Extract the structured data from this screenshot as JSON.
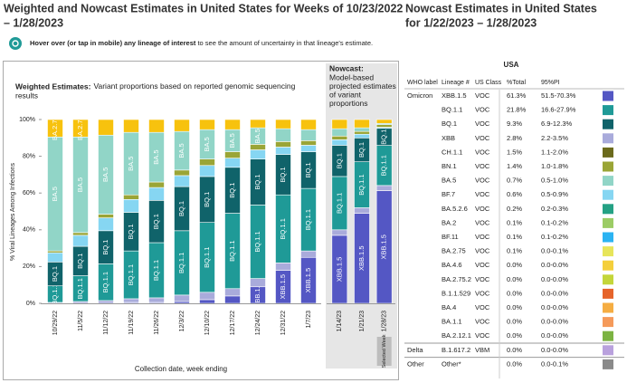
{
  "header": {
    "left_title": [
      "Weighted and Nowcast Estimates in United States for Weeks of 10/23/2022",
      "– 1/28/2023"
    ],
    "right_title": [
      "Nowcast Estimates in United States",
      "for 1/22/2023 – 1/28/2023"
    ],
    "note_bold": "Hover over (or tap in mobile) any lineage of interest",
    "note": " to see the amount of uncertainty in that lineage's estimate."
  },
  "chart_data": [
    {
      "type": "stacked-bar",
      "title": "Weighted Estimates:",
      "subtitle": [
        "Variant proportions based on reported genomic sequencing",
        "results"
      ],
      "y_label": "% Viral Lineages Among Infections",
      "x_label": "Collection date, week ending",
      "categories": [
        "10/29/22",
        "11/5/22",
        "11/12/22",
        "11/19/22",
        "11/26/22",
        "12/3/22",
        "12/10/22",
        "12/17/22",
        "12/24/22",
        "12/31/22",
        "1/7/23"
      ],
      "ylim": [
        0,
        100
      ],
      "yticks": [
        {
          "value": 0,
          "label": "0%"
        },
        {
          "value": 20,
          "label": "20%"
        },
        {
          "value": 40,
          "label": "40%"
        },
        {
          "value": 60,
          "label": "60%"
        },
        {
          "value": 80,
          "label": "80%"
        },
        {
          "value": 100,
          "label": "100%"
        }
      ],
      "series": [
        {
          "name": "XBB.1.5",
          "color": "#5457c4",
          "values": [
            0,
            0,
            0,
            0.5,
            0.5,
            1,
            2,
            4,
            9,
            18,
            25
          ]
        },
        {
          "name": "XBB",
          "color": "#a9abdb",
          "values": [
            0.5,
            1,
            1.5,
            2,
            2.5,
            3.5,
            4,
            4,
            4.5,
            4,
            3.5
          ]
        },
        {
          "name": "BQ.1.1",
          "color": "#1f9a97",
          "values": [
            9,
            14,
            20,
            26,
            30,
            35,
            38,
            41,
            40,
            37,
            34
          ]
        },
        {
          "name": "BQ.1",
          "color": "#10636a",
          "values": [
            13,
            16,
            18,
            21,
            23,
            24,
            25,
            25,
            25,
            22,
            20
          ]
        },
        {
          "name": "BF.7",
          "color": "#86d6f2",
          "values": [
            5,
            6,
            7,
            7,
            7,
            6,
            6,
            5,
            5,
            4,
            3.5
          ]
        },
        {
          "name": "BN.1",
          "color": "#9aa536",
          "values": [
            1,
            1.5,
            2,
            2.5,
            3,
            3,
            3.5,
            3.5,
            3,
            3,
            2.5
          ]
        },
        {
          "name": "BA.5",
          "color": "#91d5c7",
          "values": [
            62,
            52,
            43,
            34,
            27,
            21,
            16,
            12,
            9,
            7,
            6
          ]
        },
        {
          "name": "BA.2.75",
          "color": "#f7c20e",
          "values": [
            9.5,
            9.5,
            8.5,
            7,
            7,
            6.5,
            5.5,
            5.5,
            4.5,
            5,
            5.5
          ]
        }
      ]
    },
    {
      "type": "stacked-bar",
      "title": "Nowcast:",
      "subtitle": [
        "Model-based",
        "projected estimates",
        "of variant",
        "proportions"
      ],
      "annotation": "Selected Week",
      "categories": [
        "1/14/23",
        "1/21/23",
        "1/28/23"
      ],
      "ylim": [
        0,
        100
      ],
      "series": [
        {
          "name": "XBB.1.5",
          "color": "#5457c4",
          "values": [
            37,
            49,
            61.3
          ]
        },
        {
          "name": "XBB",
          "color": "#a9abdb",
          "values": [
            3,
            3,
            2.8
          ]
        },
        {
          "name": "BQ.1.1",
          "color": "#1f9a97",
          "values": [
            29,
            25,
            21.8
          ]
        },
        {
          "name": "BQ.1",
          "color": "#10636a",
          "values": [
            17,
            13,
            9.3
          ]
        },
        {
          "name": "BF.7",
          "color": "#86d6f2",
          "values": [
            3,
            2,
            0.6
          ]
        },
        {
          "name": "BN.1",
          "color": "#9aa536",
          "values": [
            2,
            1.5,
            1.4
          ]
        },
        {
          "name": "BA.5",
          "color": "#91d5c7",
          "values": [
            4,
            2,
            0.7
          ]
        },
        {
          "name": "BA.2.75",
          "color": "#f7c20e",
          "values": [
            5,
            4.5,
            2.1
          ]
        }
      ]
    }
  ],
  "table": {
    "region": "USA",
    "columns": [
      "WHO label",
      "Lineage #",
      "US Class",
      "%Total",
      "95%PI"
    ],
    "rows": [
      {
        "who": "Omicron",
        "lineage": "XBB.1.5",
        "class": "VOC",
        "total": "61.3%",
        "pi": "51.5-70.3%",
        "color": "#5457c4"
      },
      {
        "lineage": "BQ.1.1",
        "class": "VOC",
        "total": "21.8%",
        "pi": "16.6-27.9%",
        "color": "#1f9a97"
      },
      {
        "lineage": "BQ.1",
        "class": "VOC",
        "total": "9.3%",
        "pi": "6.9-12.3%",
        "color": "#10636a"
      },
      {
        "lineage": "XBB",
        "class": "VOC",
        "total": "2.8%",
        "pi": "2.2-3.5%",
        "color": "#a9abdb"
      },
      {
        "lineage": "CH.1.1",
        "class": "VOC",
        "total": "1.5%",
        "pi": "1.1-2.0%",
        "color": "#6b6a1c"
      },
      {
        "lineage": "BN.1",
        "class": "VOC",
        "total": "1.4%",
        "pi": "1.0-1.8%",
        "color": "#9aa536"
      },
      {
        "lineage": "BA.5",
        "class": "VOC",
        "total": "0.7%",
        "pi": "0.5-1.0%",
        "color": "#91d5c7"
      },
      {
        "lineage": "BF.7",
        "class": "VOC",
        "total": "0.6%",
        "pi": "0.5-0.9%",
        "color": "#86d6f2"
      },
      {
        "lineage": "BA.5.2.6",
        "class": "VOC",
        "total": "0.2%",
        "pi": "0.2-0.3%",
        "color": "#24a184"
      },
      {
        "lineage": "BA.2",
        "class": "VOC",
        "total": "0.1%",
        "pi": "0.1-0.2%",
        "color": "#9ccc65"
      },
      {
        "lineage": "BF.11",
        "class": "VOC",
        "total": "0.1%",
        "pi": "0.1-0.2%",
        "color": "#2bb3f2"
      },
      {
        "lineage": "BA.2.75",
        "class": "VOC",
        "total": "0.1%",
        "pi": "0.0-0.1%",
        "color": "#e7e55a"
      },
      {
        "lineage": "BA.4.6",
        "class": "VOC",
        "total": "0.0%",
        "pi": "0.0-0.0%",
        "color": "#f4cf3c"
      },
      {
        "lineage": "BA.2.75.2",
        "class": "VOC",
        "total": "0.0%",
        "pi": "0.0-0.0%",
        "color": "#c4d63a"
      },
      {
        "lineage": "B.1.1.529",
        "class": "VOC",
        "total": "0.0%",
        "pi": "0.0-0.0%",
        "color": "#e6642b"
      },
      {
        "lineage": "BA.4",
        "class": "VOC",
        "total": "0.0%",
        "pi": "0.0-0.0%",
        "color": "#f5ad42"
      },
      {
        "lineage": "BA.1.1",
        "class": "VOC",
        "total": "0.0%",
        "pi": "0.0-0.0%",
        "color": "#f59a5a"
      },
      {
        "lineage": "BA.2.12.1",
        "class": "VOC",
        "total": "0.0%",
        "pi": "0.0-0.0%",
        "color": "#7cb342"
      },
      {
        "who": "Delta",
        "lineage": "B.1.617.2",
        "class": "VBM",
        "total": "0.0%",
        "pi": "0.0-0.0%",
        "color": "#b9a1dd"
      },
      {
        "who": "Other",
        "lineage": "Other*",
        "total": "0.0%",
        "pi": "0.0-0.1%",
        "color": "#8a8a8a"
      }
    ]
  }
}
